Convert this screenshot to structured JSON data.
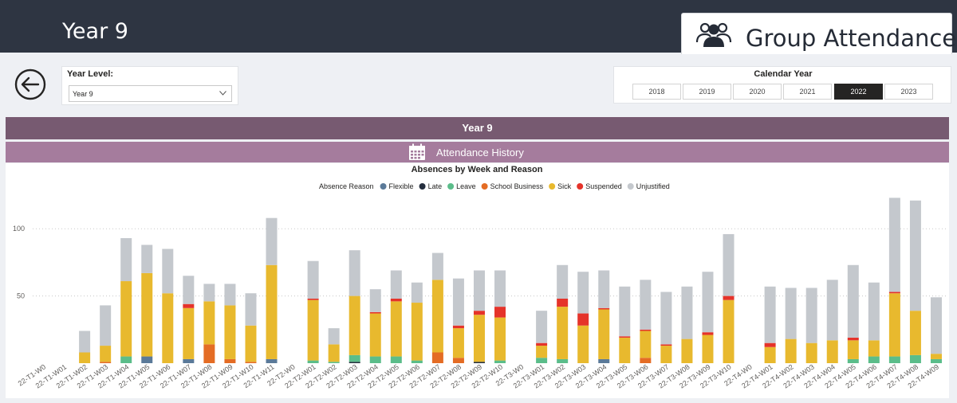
{
  "header": {
    "year_title": "Year 9",
    "page_title": "Group Attendance",
    "icon": "group-icon"
  },
  "back_icon": "back-arrow-icon",
  "year_level": {
    "label": "Year Level:",
    "value": "Year 9"
  },
  "calendar_year": {
    "label": "Calendar Year",
    "options": [
      "2018",
      "2019",
      "2020",
      "2021",
      "2022",
      "2023"
    ],
    "selected": "2022"
  },
  "section": {
    "title": "Year 9",
    "subtitle": "Attendance History",
    "icon": "calendar-icon"
  },
  "colors": {
    "header_bg": "#2e3542",
    "band_dark": "#775a71",
    "band_light": "#a57c9d"
  },
  "chart_data": {
    "type": "bar",
    "stacked": true,
    "title": "Absences by Week and Reason",
    "legend_title": "Absence Reason",
    "legend_position": "top",
    "grid": true,
    "ylim": [
      0,
      125
    ],
    "yticks": [
      50,
      100
    ],
    "categories": [
      "22-T1-W0",
      "22-T1-W01",
      "22-T1-W02",
      "22-T1-W03",
      "22-T1-W04",
      "22-T1-W05",
      "22-T1-W06",
      "22-T1-W07",
      "22-T1-W08",
      "22-T1-W09",
      "22-T1-W10",
      "22-T1-W11",
      "22-T2-W0",
      "22-T2-W01",
      "22-T2-W02",
      "22-T2-W03",
      "22-T2-W04",
      "22-T2-W05",
      "22-T2-W06",
      "22-T2-W07",
      "22-T2-W08",
      "22-T2-W09",
      "22-T2-W10",
      "22-T3-W0",
      "22-T3-W01",
      "22-T3-W02",
      "22-T3-W03",
      "22-T3-W04",
      "22-T3-W05",
      "22-T3-W06",
      "22-T3-W07",
      "22-T3-W08",
      "22-T3-W09",
      "22-T3-W10",
      "22-T4-W0",
      "22-T4-W01",
      "22-T4-W02",
      "22-T4-W03",
      "22-T4-W04",
      "22-T4-W05",
      "22-T4-W06",
      "22-T4-W07",
      "22-T4-W08",
      "22-T4-W09"
    ],
    "series": [
      {
        "name": "Flexible",
        "color": "#5b7a99",
        "values": [
          0,
          0,
          0,
          0,
          0,
          5,
          0,
          3,
          0,
          0,
          0,
          3,
          0,
          0,
          0,
          0,
          0,
          0,
          0,
          0,
          0,
          0,
          0,
          0,
          0,
          0,
          0,
          3,
          0,
          0,
          0,
          0,
          0,
          0,
          0,
          0,
          0,
          0,
          0,
          0,
          0,
          0,
          0,
          0
        ]
      },
      {
        "name": "Late",
        "color": "#252f3e",
        "values": [
          0,
          0,
          0,
          0,
          0,
          0,
          0,
          0,
          0,
          0,
          0,
          0,
          0,
          0,
          0,
          1,
          0,
          0,
          0,
          0,
          0,
          1,
          0,
          0,
          0,
          0,
          0,
          0,
          0,
          0,
          0,
          0,
          0,
          0,
          0,
          0,
          0,
          0,
          0,
          0,
          0,
          0,
          0,
          0
        ]
      },
      {
        "name": "Leave",
        "color": "#5bbd8a",
        "values": [
          0,
          0,
          0,
          0,
          5,
          0,
          0,
          0,
          0,
          0,
          0,
          0,
          0,
          2,
          1,
          5,
          5,
          5,
          2,
          0,
          0,
          0,
          2,
          0,
          4,
          3,
          0,
          0,
          0,
          0,
          0,
          0,
          0,
          0,
          0,
          0,
          0,
          0,
          0,
          3,
          5,
          5,
          6,
          3
        ]
      },
      {
        "name": "School Business",
        "color": "#e46c24",
        "values": [
          0,
          0,
          0,
          1,
          0,
          0,
          0,
          0,
          14,
          3,
          1,
          0,
          0,
          0,
          0,
          0,
          0,
          0,
          0,
          8,
          4,
          0,
          0,
          0,
          0,
          0,
          0,
          0,
          0,
          4,
          0,
          0,
          0,
          0,
          0,
          0,
          0,
          0,
          0,
          0,
          0,
          0,
          0,
          0
        ]
      },
      {
        "name": "Sick",
        "color": "#e8b92e",
        "values": [
          0,
          0,
          8,
          12,
          56,
          62,
          52,
          38,
          32,
          40,
          27,
          70,
          0,
          45,
          13,
          44,
          32,
          41,
          43,
          54,
          22,
          35,
          32,
          0,
          9,
          39,
          28,
          37,
          19,
          20,
          13,
          18,
          21,
          47,
          0,
          12,
          18,
          15,
          17,
          14,
          12,
          47,
          33,
          4
        ]
      },
      {
        "name": "Suspended",
        "color": "#e5332a",
        "values": [
          0,
          0,
          0,
          0,
          0,
          0,
          0,
          3,
          0,
          0,
          0,
          0,
          0,
          1,
          0,
          0,
          1,
          2,
          0,
          0,
          2,
          3,
          8,
          0,
          2,
          6,
          9,
          1,
          1,
          1,
          1,
          0,
          2,
          3,
          0,
          3,
          0,
          0,
          0,
          2,
          0,
          1,
          0,
          0
        ]
      },
      {
        "name": "Unjustified",
        "color": "#c4c8cd",
        "values": [
          0,
          0,
          16,
          30,
          32,
          21,
          33,
          21,
          13,
          16,
          24,
          35,
          0,
          28,
          12,
          34,
          17,
          21,
          15,
          20,
          35,
          30,
          27,
          0,
          24,
          25,
          31,
          28,
          37,
          37,
          39,
          39,
          45,
          46,
          0,
          42,
          38,
          41,
          45,
          54,
          43,
          70,
          82,
          42
        ]
      }
    ]
  }
}
